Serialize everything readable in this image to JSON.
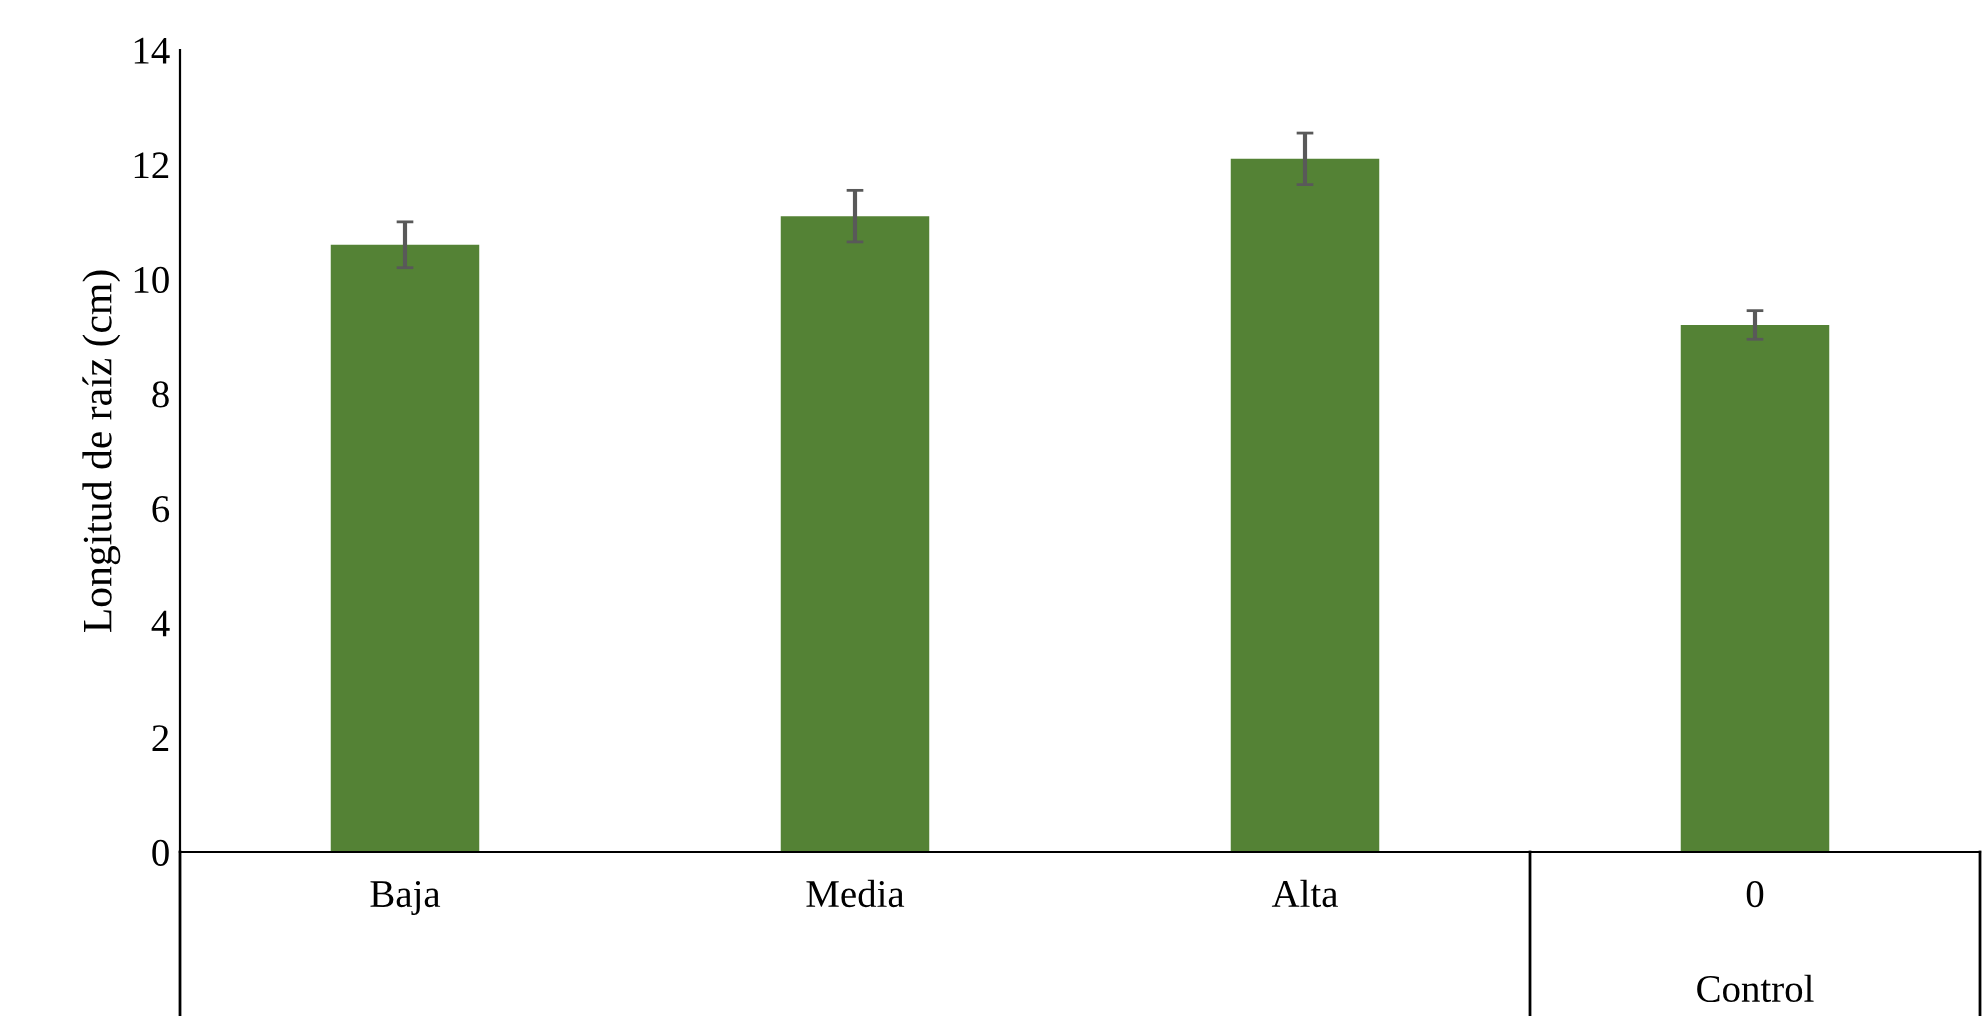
{
  "chart_data": {
    "type": "bar",
    "ylabel": "Longitud de raíz (cm)",
    "categories": [
      "Baja",
      "Media",
      "Alta",
      "0"
    ],
    "values": [
      10.6,
      11.1,
      12.1,
      9.2
    ],
    "errors": [
      0.4,
      0.45,
      0.45,
      0.25
    ],
    "color": "#548235",
    "ylim": [
      0,
      14
    ],
    "yticks": [
      0,
      2,
      4,
      6,
      8,
      10,
      12,
      14
    ],
    "grid": false,
    "legend": false,
    "annotations": [
      "Control"
    ]
  }
}
